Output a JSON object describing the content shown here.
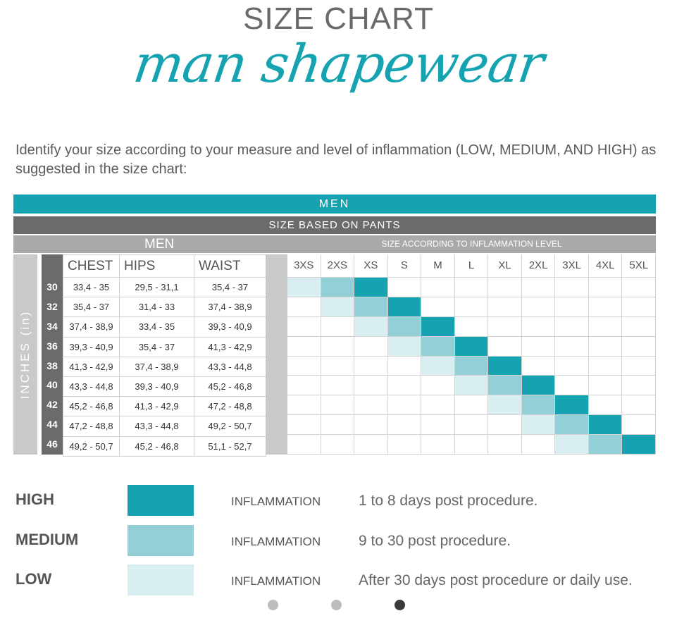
{
  "header": {
    "title": "SIZE CHART",
    "script_title": "man shapewear"
  },
  "intro": "Identify your size according to your measure and level of inflammation (LOW, MEDIUM, AND HIGH) as suggested in the size chart:",
  "bars": {
    "men": "MEN",
    "size_based": "SIZE BASED ON PANTS",
    "sub_men": "MEN",
    "sub_level": "SIZE ACCORDING TO INFLAMMATION LEVEL",
    "inches": "INCHES (in)"
  },
  "table": {
    "headers": [
      "CHEST",
      "HIPS",
      "WAIST"
    ],
    "rows": [
      {
        "size": "30",
        "chest": "33,4 - 35",
        "hips": "29,5 - 31,1",
        "waist": "35,4 - 37"
      },
      {
        "size": "32",
        "chest": "35,4 - 37",
        "hips": "31,4 - 33",
        "waist": "37,4 - 38,9"
      },
      {
        "size": "34",
        "chest": "37,4 - 38,9",
        "hips": "33,4 - 35",
        "waist": "39,3 - 40,9"
      },
      {
        "size": "36",
        "chest": "39,3 - 40,9",
        "hips": "35,4 - 37",
        "waist": "41,3 - 42,9"
      },
      {
        "size": "38",
        "chest": "41,3 - 42,9",
        "hips": "37,4 - 38,9",
        "waist": "43,3 - 44,8"
      },
      {
        "size": "40",
        "chest": "43,3 - 44,8",
        "hips": "39,3 - 40,9",
        "waist": "45,2 - 46,8"
      },
      {
        "size": "42",
        "chest": "45,2 - 46,8",
        "hips": "41,3 - 42,9",
        "waist": "47,2 - 48,8"
      },
      {
        "size": "44",
        "chest": "47,2 - 48,8",
        "hips": "43,3 - 44,8",
        "waist": "49,2 - 50,7"
      },
      {
        "size": "46",
        "chest": "49,2 - 50,7",
        "hips": "45,2 - 46,8",
        "waist": "51,1 - 52,7"
      }
    ]
  },
  "sizes": [
    "3XS",
    "2XS",
    "XS",
    "S",
    "M",
    "L",
    "XL",
    "2XL",
    "3XL",
    "4XL",
    "5XL"
  ],
  "size_map": [
    {
      "low": "3XS",
      "medium": "2XS",
      "high": "XS"
    },
    {
      "low": "2XS",
      "medium": "XS",
      "high": "S"
    },
    {
      "low": "XS",
      "medium": "S",
      "high": "M"
    },
    {
      "low": "S",
      "medium": "M",
      "high": "L"
    },
    {
      "low": "M",
      "medium": "L",
      "high": "XL"
    },
    {
      "low": "L",
      "medium": "XL",
      "high": "2XL"
    },
    {
      "low": "XL",
      "medium": "2XL",
      "high": "3XL"
    },
    {
      "low": "2XL",
      "medium": "3XL",
      "high": "4XL"
    },
    {
      "low": "3XL",
      "medium": "4XL",
      "high": "5XL"
    }
  ],
  "colors": {
    "high": "#16a3b1",
    "medium": "#93cfd6",
    "low": "#d9eef1",
    "dark_gray": "#6b6b6b",
    "mid_gray": "#a9a9a9"
  },
  "legend": [
    {
      "level": "HIGH",
      "inflammation": "INFLAMMATION",
      "desc": "1 to 8 days post procedure."
    },
    {
      "level": "MEDIUM",
      "inflammation": "INFLAMMATION",
      "desc": "9 to 30 post procedure."
    },
    {
      "level": "LOW",
      "inflammation": "INFLAMMATION",
      "desc": "After 30 days post procedure or daily use."
    }
  ],
  "pagination": {
    "count": 3,
    "active": 3
  }
}
